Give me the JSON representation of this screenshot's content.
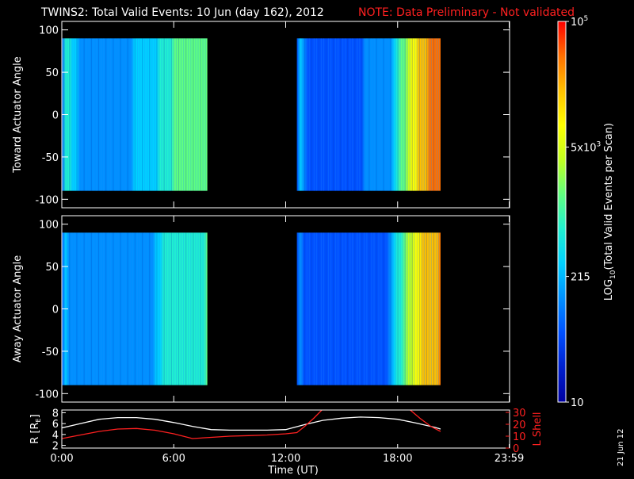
{
  "header": {
    "title": "TWINS2: Total Valid Events: 10 Jun (day 162), 2012",
    "note": "NOTE: Data Preliminary - Not validated"
  },
  "panels": [
    {
      "id": "toward",
      "ylabel": "Toward Actuator Angle",
      "ylim": [
        -110,
        110
      ],
      "yticks": [
        "100",
        "50",
        "0",
        "-50",
        "-100"
      ],
      "yticks_values": [
        100,
        50,
        0,
        -50,
        -100
      ]
    },
    {
      "id": "away",
      "ylabel": "Away Actuator Angle",
      "ylim": [
        -110,
        110
      ],
      "yticks": [
        "100",
        "50",
        "0",
        "-50",
        "-100"
      ],
      "yticks_values": [
        100,
        50,
        0,
        -50,
        -100
      ]
    }
  ],
  "colorbar": {
    "label_main": "LOG",
    "label_sub": "10",
    "label_rest": "(Total Valid Events per Scan)",
    "ticks": [
      {
        "label": "10",
        "sup": "",
        "frac": 0.0
      },
      {
        "label": "215",
        "sup": "",
        "frac": 0.33
      },
      {
        "label": "5x10",
        "sup": "3",
        "frac": 0.67
      },
      {
        "label": "10",
        "sup": "5",
        "frac": 1.0
      }
    ],
    "colors": [
      "#0000a0",
      "#0020d0",
      "#0050ff",
      "#0090ff",
      "#00d0ff",
      "#20f0d0",
      "#60ff80",
      "#c0ff20",
      "#ffff00",
      "#ffc000",
      "#ff7000",
      "#ff0000"
    ]
  },
  "orbit": {
    "ylabel_left": "R [R",
    "ylabel_left_sub": "E",
    "ylabel_left_end": "]",
    "ylabel_right": "L Shell",
    "left_ticks": [
      "8",
      "6",
      "4",
      "2"
    ],
    "left_ticks_values": [
      8,
      6,
      4,
      2
    ],
    "right_ticks": [
      "30",
      "20",
      "10",
      "0"
    ],
    "right_ticks_values": [
      30,
      20,
      10,
      0
    ],
    "left_ylim": [
      1.5,
      8.5
    ],
    "right_ylim": [
      0,
      32
    ]
  },
  "xaxis": {
    "label": "Time (UT)",
    "ticks": [
      "0:00",
      "6:00",
      "12:00",
      "18:00",
      "23:59"
    ],
    "ticks_values": [
      0,
      6,
      12,
      18,
      23.98
    ],
    "xlim": [
      0,
      24
    ]
  },
  "date_stamp": "21 Jun 12",
  "chart_data": {
    "type": "heatmap",
    "title": "TWINS2: Total Valid Events: 10 Jun (day 162), 2012",
    "subtitle": "NOTE: Data Preliminary - Not validated",
    "xlabel": "Time (UT)",
    "xlim": [
      0,
      24
    ],
    "coverage_intervals_hours": [
      [
        0.0,
        7.8
      ],
      [
        12.6,
        20.3
      ]
    ],
    "colorscale_range": [
      10,
      100000
    ],
    "colorscale_log": true,
    "toward_panel": {
      "ylabel": "Toward Actuator Angle",
      "angle_range": [
        -90,
        90
      ],
      "level_by_time": [
        {
          "t": 0.0,
          "log_level": 1.9
        },
        {
          "t": 0.2,
          "log_level": 2.9
        },
        {
          "t": 1.0,
          "log_level": 2.2
        },
        {
          "t": 3.0,
          "log_level": 2.2
        },
        {
          "t": 5.0,
          "log_level": 2.4
        },
        {
          "t": 5.3,
          "log_level": 2.9
        },
        {
          "t": 6.5,
          "log_level": 3.1
        },
        {
          "t": 7.8,
          "log_level": 3.2
        },
        {
          "t": 12.6,
          "log_level": 2.7
        },
        {
          "t": 13.0,
          "log_level": 1.9
        },
        {
          "t": 16.0,
          "log_level": 1.9
        },
        {
          "t": 17.5,
          "log_level": 2.0
        },
        {
          "t": 18.0,
          "log_level": 2.9
        },
        {
          "t": 18.5,
          "log_level": 3.5
        },
        {
          "t": 19.0,
          "log_level": 4.1
        },
        {
          "t": 19.5,
          "log_level": 4.4
        },
        {
          "t": 20.3,
          "log_level": 4.6
        }
      ]
    },
    "away_panel": {
      "ylabel": "Away Actuator Angle",
      "angle_range": [
        -90,
        90
      ],
      "level_by_time": [
        {
          "t": 0.0,
          "log_level": 1.9
        },
        {
          "t": 0.2,
          "log_level": 2.3
        },
        {
          "t": 1.0,
          "log_level": 2.1
        },
        {
          "t": 3.0,
          "log_level": 2.1
        },
        {
          "t": 5.0,
          "log_level": 2.2
        },
        {
          "t": 5.3,
          "log_level": 2.6
        },
        {
          "t": 6.5,
          "log_level": 2.9
        },
        {
          "t": 7.8,
          "log_level": 3.0
        },
        {
          "t": 12.6,
          "log_level": 2.4
        },
        {
          "t": 13.0,
          "log_level": 1.6
        },
        {
          "t": 16.0,
          "log_level": 1.6
        },
        {
          "t": 17.5,
          "log_level": 1.8
        },
        {
          "t": 18.0,
          "log_level": 2.7
        },
        {
          "t": 18.5,
          "log_level": 3.4
        },
        {
          "t": 19.0,
          "log_level": 4.0
        },
        {
          "t": 19.5,
          "log_level": 4.3
        },
        {
          "t": 20.3,
          "log_level": 4.5
        }
      ]
    },
    "orbit_series": [
      {
        "name": "R [RE]",
        "color": "#ffffff",
        "points": [
          [
            0,
            5.2
          ],
          [
            1,
            6.0
          ],
          [
            2,
            6.8
          ],
          [
            3,
            7.1
          ],
          [
            4,
            7.1
          ],
          [
            5,
            6.8
          ],
          [
            6,
            6.2
          ],
          [
            7,
            5.5
          ],
          [
            8,
            4.9
          ],
          [
            9,
            4.8
          ],
          [
            10,
            4.8
          ],
          [
            11,
            4.8
          ],
          [
            12,
            4.9
          ],
          [
            13,
            5.8
          ],
          [
            14,
            6.6
          ],
          [
            15,
            7.0
          ],
          [
            16,
            7.2
          ],
          [
            17,
            7.1
          ],
          [
            18,
            6.8
          ],
          [
            19,
            6.1
          ],
          [
            20,
            5.3
          ],
          [
            20.3,
            5.0
          ]
        ]
      },
      {
        "name": "L Shell",
        "color": "#ff2020",
        "points": [
          [
            0,
            8
          ],
          [
            1,
            11
          ],
          [
            2,
            14
          ],
          [
            3,
            16
          ],
          [
            4,
            16.5
          ],
          [
            5,
            15
          ],
          [
            6,
            12
          ],
          [
            7,
            8
          ],
          [
            8,
            9
          ],
          [
            9,
            10
          ],
          [
            10,
            10.5
          ],
          [
            11,
            11
          ],
          [
            12,
            12
          ],
          [
            12.6,
            13
          ],
          [
            13,
            18
          ],
          [
            13.5,
            25
          ],
          [
            14,
            33
          ],
          [
            18.6,
            33
          ],
          [
            19.2,
            25
          ],
          [
            19.8,
            18
          ],
          [
            20.3,
            14
          ]
        ]
      }
    ]
  }
}
